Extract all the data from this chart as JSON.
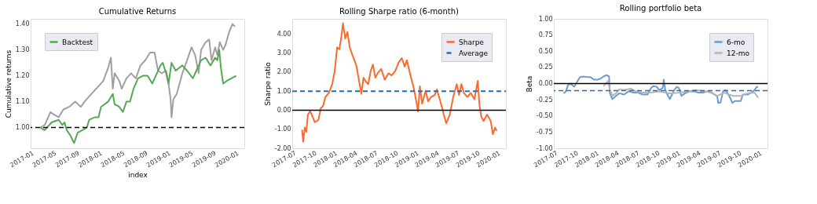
{
  "chart_data": [
    {
      "type": "line",
      "title": "Cumulative Returns",
      "xlabel": "index",
      "ylabel": "Cumulative returns",
      "legend": "top left",
      "xlim": [
        "2016-12-27",
        "2020-02-12"
      ],
      "xticks": [
        "2017-01",
        "2017-05",
        "2017-09",
        "2018-01",
        "2018-05",
        "2018-09",
        "2019-01",
        "2019-05",
        "2019-09",
        "2020-01"
      ],
      "ylim": [
        0.92,
        1.42
      ],
      "yticks": [
        {
          "value": 1.0,
          "label": "1.00"
        },
        {
          "value": 1.1,
          "label": "1.10"
        },
        {
          "value": 1.2,
          "label": "1.20"
        },
        {
          "value": 1.3,
          "label": "1.30"
        },
        {
          "value": 1.4,
          "label": "1.40"
        }
      ],
      "series": [
        {
          "color": "#a0a0a0",
          "x": [
            "2017-02-17",
            "2017-03-12",
            "2017-04-12",
            "2017-05-01",
            "2017-05-26",
            "2017-06-20",
            "2017-07-21",
            "2017-08-22",
            "2017-09-22",
            "2017-10-11",
            "2017-11-17",
            "2017-12-25",
            "2018-01-19",
            "2018-02-14",
            "2018-03-01",
            "2018-03-11",
            "2018-03-21",
            "2018-04-15",
            "2018-04-28",
            "2018-05-23",
            "2018-06-17",
            "2018-07-12",
            "2018-08-06",
            "2018-09-01",
            "2018-09-26",
            "2018-10-20",
            "2018-11-08",
            "2018-11-27",
            "2018-12-21",
            "2019-01-03",
            "2019-01-14",
            "2019-01-19",
            "2019-01-29",
            "2019-02-16",
            "2019-03-18",
            "2019-04-12",
            "2019-05-06",
            "2019-05-25",
            "2019-06-13",
            "2019-06-26",
            "2019-07-20",
            "2019-08-08",
            "2019-08-21",
            "2019-09-09",
            "2019-09-21",
            "2019-10-04",
            "2019-10-22",
            "2019-11-04",
            "2019-11-23",
            "2019-12-11",
            "2019-12-24"
          ],
          "values": [
            1.0,
            1.01,
            1.06,
            1.05,
            1.04,
            1.07,
            1.08,
            1.1,
            1.08,
            1.1,
            1.13,
            1.16,
            1.18,
            1.23,
            1.27,
            1.15,
            1.21,
            1.18,
            1.15,
            1.19,
            1.21,
            1.19,
            1.24,
            1.26,
            1.29,
            1.29,
            1.22,
            1.21,
            1.22,
            1.17,
            1.11,
            1.04,
            1.11,
            1.13,
            1.21,
            1.26,
            1.31,
            1.28,
            1.21,
            1.3,
            1.33,
            1.34,
            1.26,
            1.31,
            1.28,
            1.33,
            1.3,
            1.32,
            1.37,
            1.4,
            1.39
          ]
        },
        {
          "name": "Backtest",
          "color": "#55a855",
          "x": [
            "2017-02-17",
            "2017-03-12",
            "2017-04-18",
            "2017-05-26",
            "2017-06-14",
            "2017-06-26",
            "2017-07-08",
            "2017-07-27",
            "2017-08-16",
            "2017-09-04",
            "2017-09-29",
            "2017-10-23",
            "2017-11-05",
            "2017-12-06",
            "2017-12-25",
            "2018-01-07",
            "2018-02-14",
            "2018-03-11",
            "2018-03-21",
            "2018-04-15",
            "2018-05-04",
            "2018-05-23",
            "2018-06-11",
            "2018-06-30",
            "2018-07-24",
            "2018-08-19",
            "2018-09-13",
            "2018-10-08",
            "2018-11-02",
            "2018-11-21",
            "2018-12-03",
            "2018-12-21",
            "2019-01-03",
            "2019-01-19",
            "2019-02-10",
            "2019-03-18",
            "2019-04-12",
            "2019-05-13",
            "2019-06-01",
            "2019-06-26",
            "2019-07-20",
            "2019-08-15",
            "2019-09-09",
            "2019-09-21",
            "2019-10-01",
            "2019-10-10",
            "2019-10-22",
            "2019-11-10",
            "2019-12-05",
            "2019-12-30"
          ],
          "values": [
            1.0,
            0.99,
            1.02,
            1.03,
            1.01,
            1.02,
            0.99,
            0.97,
            0.94,
            0.98,
            0.99,
            1.0,
            1.03,
            1.04,
            1.04,
            1.08,
            1.1,
            1.13,
            1.09,
            1.08,
            1.06,
            1.1,
            1.1,
            1.15,
            1.19,
            1.2,
            1.2,
            1.17,
            1.21,
            1.24,
            1.25,
            1.21,
            1.17,
            1.25,
            1.22,
            1.24,
            1.22,
            1.19,
            1.22,
            1.26,
            1.27,
            1.24,
            1.27,
            1.26,
            1.3,
            1.23,
            1.17,
            1.18,
            1.19,
            1.2
          ]
        }
      ],
      "ref_lines": [
        {
          "axis": "y",
          "value": 1.0,
          "color": "#000000",
          "line_style": "dashed"
        }
      ]
    },
    {
      "type": "line",
      "title": "Rolling Sharpe ratio (6-month)",
      "ylabel": "Sharpe ratio",
      "legend": "top right",
      "xlim": [
        "2017-06-24",
        "2020-02-05"
      ],
      "xticks": [
        "2017-07",
        "2017-10",
        "2018-01",
        "2018-04",
        "2018-07",
        "2018-10",
        "2019-01",
        "2019-04",
        "2019-07",
        "2019-10",
        "2020-01"
      ],
      "ylim": [
        -2,
        4.8
      ],
      "yticks": [
        {
          "value": -2,
          "label": "-2.00"
        },
        {
          "value": -1,
          "label": "-1.00"
        },
        {
          "value": 0,
          "label": "0.00"
        },
        {
          "value": 1,
          "label": "1.00"
        },
        {
          "value": 2,
          "label": "2.00"
        },
        {
          "value": 3,
          "label": "3.00"
        },
        {
          "value": 4,
          "label": "4.00"
        }
      ],
      "series": [
        {
          "name": "Sharpe",
          "color": "#f86a2e",
          "x": [
            "2017-08-07",
            "2017-08-12",
            "2017-08-19",
            "2017-08-26",
            "2017-09-02",
            "2017-09-12",
            "2017-09-23",
            "2017-10-03",
            "2017-10-19",
            "2017-10-30",
            "2017-11-09",
            "2017-11-19",
            "2017-12-05",
            "2017-12-20",
            "2017-12-31",
            "2018-01-11",
            "2018-01-21",
            "2018-01-30",
            "2018-02-06",
            "2018-02-16",
            "2018-02-26",
            "2018-03-08",
            "2018-03-18",
            "2018-03-29",
            "2018-04-08",
            "2018-04-18",
            "2018-04-29",
            "2018-05-09",
            "2018-05-20",
            "2018-05-30",
            "2018-06-10",
            "2018-06-20",
            "2018-07-01",
            "2018-07-11",
            "2018-07-27",
            "2018-08-12",
            "2018-08-28",
            "2018-09-12",
            "2018-09-28",
            "2018-10-13",
            "2018-10-27",
            "2018-11-09",
            "2018-11-19",
            "2018-12-05",
            "2018-12-20",
            "2018-12-31",
            "2019-01-08",
            "2019-01-16",
            "2019-01-26",
            "2019-02-11",
            "2019-02-22",
            "2019-03-07",
            "2019-03-23",
            "2019-04-02",
            "2019-04-18",
            "2019-05-03",
            "2019-05-14",
            "2019-05-30",
            "2019-06-14",
            "2019-06-30",
            "2019-07-10",
            "2019-07-21",
            "2019-08-01",
            "2019-08-16",
            "2019-09-01",
            "2019-09-17",
            "2019-10-02",
            "2019-10-10",
            "2019-10-18",
            "2019-10-28",
            "2019-11-13",
            "2019-11-29",
            "2019-12-09",
            "2019-12-19",
            "2019-12-25"
          ],
          "values": [
            -1.03,
            -1.66,
            -0.91,
            -1.14,
            -0.23,
            -0.06,
            -0.34,
            -0.63,
            -0.51,
            0.11,
            0.23,
            0.69,
            0.91,
            1.37,
            2.06,
            3.31,
            3.2,
            3.89,
            4.57,
            3.77,
            4.11,
            3.31,
            2.97,
            2.63,
            2.29,
            1.6,
            0.86,
            1.71,
            1.49,
            1.37,
            2.06,
            2.4,
            1.71,
            1.94,
            2.17,
            1.6,
            1.94,
            1.83,
            2.06,
            2.51,
            2.74,
            2.29,
            2.63,
            1.83,
            1.14,
            0.46,
            -0.06,
            1.26,
            0.34,
            1.03,
            0.46,
            0.69,
            0.8,
            1.09,
            0.46,
            -0.23,
            -0.69,
            -0.23,
            0.69,
            1.37,
            0.8,
            1.37,
            0.91,
            0.69,
            0.91,
            0.57,
            1.54,
            0.23,
            -0.34,
            -0.57,
            -0.23,
            -0.57,
            -1.26,
            -0.91,
            -1.09
          ]
        },
        {
          "name": "Average",
          "color": "#2b6cb0",
          "line_style": "dashed",
          "x": [
            "2017-06-24",
            "2020-02-05"
          ],
          "values": [
            1.0,
            1.0
          ]
        }
      ],
      "ref_lines": [
        {
          "axis": "y",
          "value": 0,
          "color": "#000000",
          "line_style": "solid"
        }
      ]
    },
    {
      "type": "line",
      "title": "Rolling portfolio beta",
      "ylabel": "Beta",
      "legend": "top right",
      "xlim": [
        "2017-06-24",
        "2020-02-05"
      ],
      "xticks": [
        "2017-07",
        "2017-10",
        "2018-01",
        "2018-04",
        "2018-07",
        "2018-10",
        "2019-01",
        "2019-04",
        "2019-07",
        "2019-10",
        "2020-01"
      ],
      "ylim": [
        -1,
        1
      ],
      "yticks": [
        {
          "value": -1,
          "label": "-1.00"
        },
        {
          "value": -0.75,
          "label": "-0.75"
        },
        {
          "value": -0.5,
          "label": "-0.50"
        },
        {
          "value": -0.25,
          "label": "-0.25"
        },
        {
          "value": 0,
          "label": "0.00"
        },
        {
          "value": 0.25,
          "label": "0.25"
        },
        {
          "value": 0.5,
          "label": "0.50"
        },
        {
          "value": 0.75,
          "label": "0.75"
        },
        {
          "value": 1,
          "label": "1.00"
        }
      ],
      "series": [
        {
          "name": "6-mo",
          "color": "#6c9bcd",
          "x": [
            "2017-08-07",
            "2017-08-17",
            "2017-08-27",
            "2017-09-07",
            "2017-09-23",
            "2017-10-03",
            "2017-10-19",
            "2017-11-04",
            "2017-11-19",
            "2017-12-05",
            "2017-12-20",
            "2018-01-06",
            "2018-01-21",
            "2018-02-01",
            "2018-02-16",
            "2018-02-26",
            "2018-03-02",
            "2018-03-13",
            "2018-03-29",
            "2018-04-13",
            "2018-05-04",
            "2018-05-25",
            "2018-06-15",
            "2018-07-06",
            "2018-07-27",
            "2018-08-17",
            "2018-09-02",
            "2018-09-12",
            "2018-09-28",
            "2018-10-08",
            "2018-10-24",
            "2018-10-29",
            "2018-11-04",
            "2018-11-14",
            "2018-11-25",
            "2018-12-05",
            "2018-12-15",
            "2018-12-26",
            "2019-01-05",
            "2019-01-16",
            "2019-02-01",
            "2019-02-22",
            "2019-03-12",
            "2019-04-02",
            "2019-04-23",
            "2019-05-14",
            "2019-05-30",
            "2019-06-14",
            "2019-06-25",
            "2019-06-30",
            "2019-07-10",
            "2019-07-21",
            "2019-08-01",
            "2019-08-11",
            "2019-08-22",
            "2019-09-01",
            "2019-09-12",
            "2019-09-28",
            "2019-10-08",
            "2019-10-18",
            "2019-11-08",
            "2019-11-24",
            "2019-12-09",
            "2019-12-19",
            "2019-12-25"
          ],
          "values": [
            -0.15,
            -0.12,
            -0.02,
            0.0,
            -0.05,
            0.01,
            0.1,
            0.11,
            0.1,
            0.1,
            0.06,
            0.06,
            0.08,
            0.11,
            0.13,
            0.11,
            -0.15,
            -0.24,
            -0.19,
            -0.15,
            -0.17,
            -0.12,
            -0.14,
            -0.14,
            -0.17,
            -0.17,
            -0.07,
            -0.04,
            -0.05,
            -0.1,
            -0.07,
            0.06,
            -0.09,
            -0.17,
            -0.24,
            -0.17,
            -0.1,
            -0.05,
            -0.07,
            -0.19,
            -0.15,
            -0.12,
            -0.12,
            -0.14,
            -0.14,
            -0.12,
            -0.14,
            -0.17,
            -0.2,
            -0.3,
            -0.29,
            -0.12,
            -0.1,
            -0.15,
            -0.22,
            -0.3,
            -0.27,
            -0.27,
            -0.27,
            -0.17,
            -0.17,
            -0.14,
            -0.1,
            -0.05,
            -0.05
          ]
        },
        {
          "name": "12-mo",
          "color": "#b5b5b5",
          "x": [
            "2018-02-01",
            "2018-02-22",
            "2018-03-02",
            "2018-03-13",
            "2018-03-29",
            "2018-04-13",
            "2018-05-04",
            "2018-06-04",
            "2018-06-25",
            "2018-07-27",
            "2018-08-28",
            "2018-10-08",
            "2018-11-19",
            "2018-12-10",
            "2019-01-11",
            "2019-02-11",
            "2019-03-23",
            "2019-05-03",
            "2019-06-04",
            "2019-06-25",
            "2019-07-26",
            "2019-08-16",
            "2019-09-07",
            "2019-10-08",
            "2019-11-08",
            "2019-12-09",
            "2019-12-25"
          ],
          "values": [
            -0.04,
            0.04,
            -0.1,
            -0.19,
            -0.15,
            -0.09,
            -0.1,
            -0.08,
            -0.12,
            -0.14,
            -0.14,
            -0.12,
            -0.15,
            -0.15,
            -0.14,
            -0.12,
            -0.1,
            -0.12,
            -0.15,
            -0.19,
            -0.14,
            -0.17,
            -0.19,
            -0.19,
            -0.15,
            -0.14,
            -0.22
          ]
        }
      ],
      "ref_lines": [
        {
          "axis": "y",
          "value": 0,
          "color": "#000000",
          "line_style": "solid"
        },
        {
          "axis": "y",
          "value": -0.11,
          "color": "#2b6cb0",
          "line_style": "dashed"
        }
      ]
    }
  ]
}
